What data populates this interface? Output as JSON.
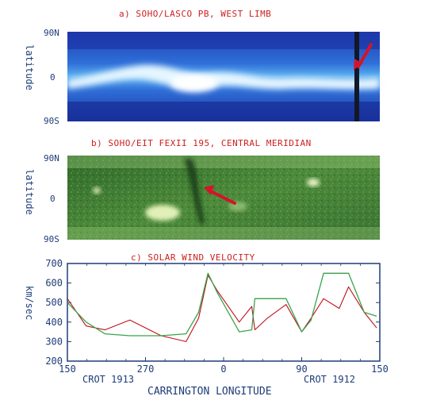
{
  "panels": {
    "a": {
      "title": "a)  SOHO/LASCO PB, WEST LIMB",
      "ylabel": "latitude",
      "ticks": [
        "90N",
        "0",
        "90S"
      ]
    },
    "b": {
      "title": "b)  SOHO/EIT FEXII 195, CENTRAL MERIDIAN",
      "ylabel": "latitude",
      "ticks": [
        "90N",
        "0",
        "90S"
      ]
    },
    "c": {
      "title": "c)  SOLAR WIND VELOCITY"
    }
  },
  "colors": {
    "title_red": "#cc1f1f",
    "label_blue": "#1e3c78",
    "series_red": "#c0101a",
    "series_green": "#3aa34a",
    "arrow_red": "#d4142a"
  },
  "chart_data": {
    "type": "line",
    "title": "c)  SOLAR WIND VELOCITY",
    "xlabel": "CARRINGTON LONGITUDE",
    "ylabel": "km/sec",
    "ylim": [
      200,
      700
    ],
    "yticks": [
      200,
      300,
      400,
      500,
      600,
      700
    ],
    "xticks": [
      "150",
      "270",
      "0",
      "90",
      "150"
    ],
    "rotation_labels": [
      "CROT 1913",
      "CROT 1912"
    ],
    "x_fraction": [
      0,
      0.06,
      0.12,
      0.2,
      0.3,
      0.38,
      0.42,
      0.45,
      0.48,
      0.55,
      0.59,
      0.6,
      0.64,
      0.7,
      0.75,
      0.78,
      0.82,
      0.87,
      0.9,
      0.95,
      0.99
    ],
    "series": [
      {
        "values": [
          520,
          380,
          360,
          410,
          330,
          300,
          420,
          640,
          560,
          400,
          480,
          360,
          420,
          490,
          350,
          420,
          520,
          470,
          580,
          450,
          370
        ]
      },
      {
        "values": [
          500,
          400,
          340,
          330,
          330,
          340,
          450,
          650,
          550,
          350,
          360,
          520,
          520,
          520,
          350,
          410,
          650,
          650,
          650,
          450,
          430
        ]
      }
    ]
  }
}
